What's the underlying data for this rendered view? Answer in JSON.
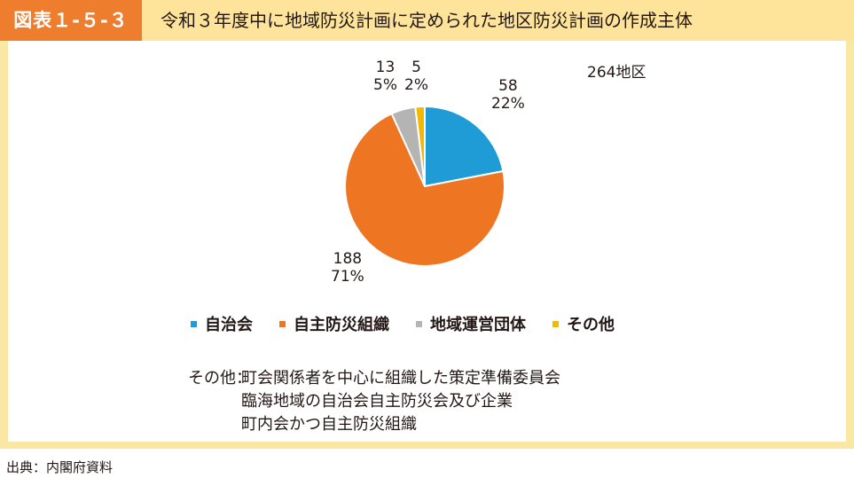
{
  "header": {
    "figure_label": "図表１-５-３",
    "title": "令和３年度中に地域防災計画に定められた地区防災計画の作成主体"
  },
  "total_label": "264地区",
  "chart_data": {
    "type": "pie",
    "title": "令和３年度中に地域防災計画に定められた地区防災計画の作成主体",
    "total": 264,
    "slices": [
      {
        "name": "自治会",
        "value": 58,
        "percent": "22%",
        "color": "#1f9bd5"
      },
      {
        "name": "自主防災組織",
        "value": 188,
        "percent": "71%",
        "color": "#ee7521"
      },
      {
        "name": "地域運営団体",
        "value": 13,
        "percent": "5%",
        "color": "#b4b4b4"
      },
      {
        "name": "その他",
        "value": 5,
        "percent": "2%",
        "color": "#f3b800"
      }
    ],
    "legend_position": "bottom"
  },
  "note": {
    "prefix": "その他：",
    "lines": [
      "町会関係者を中心に組織した策定準備委員会",
      "臨海地域の自治会自主防災会及び企業",
      "町内会かつ自主防災組織"
    ]
  },
  "source": "出典：内閣府資料"
}
